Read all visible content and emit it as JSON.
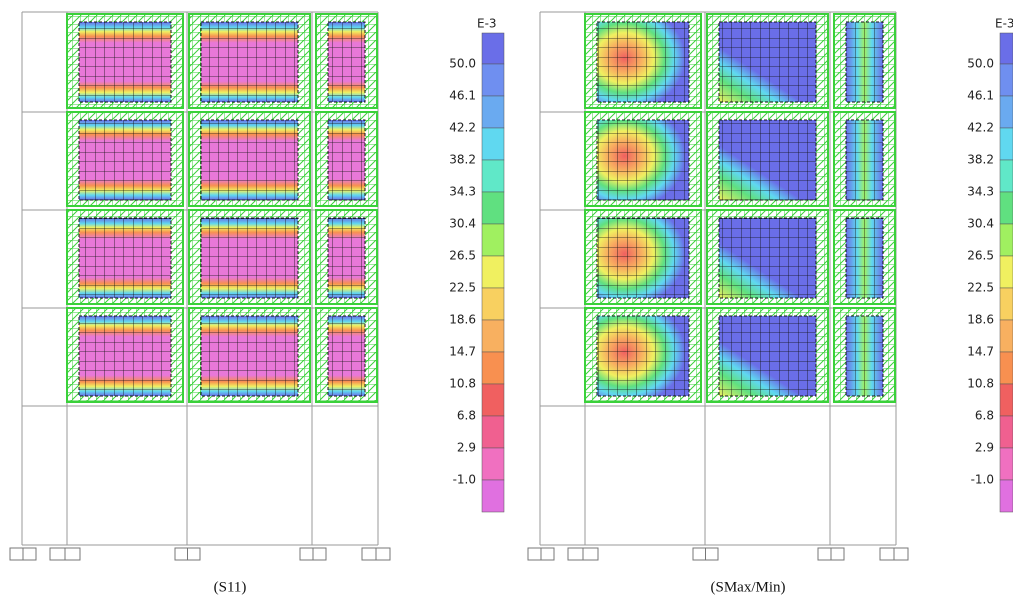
{
  "panels": [
    {
      "caption": "(S11)",
      "legend": {
        "unit": "E-3",
        "labels": [
          "50.0",
          "46.1",
          "42.2",
          "38.2",
          "34.3",
          "30.4",
          "26.5",
          "22.5",
          "18.6",
          "14.7",
          "10.8",
          "6.8",
          "2.9",
          "-1.0"
        ]
      }
    },
    {
      "caption": "(SMax/Min)",
      "legend": {
        "unit": "E-3",
        "labels": [
          "50.0",
          "46.1",
          "42.2",
          "38.2",
          "34.3",
          "30.4",
          "26.5",
          "22.5",
          "18.6",
          "14.7",
          "10.8",
          "6.8",
          "2.9",
          "-1.0"
        ]
      }
    }
  ]
}
